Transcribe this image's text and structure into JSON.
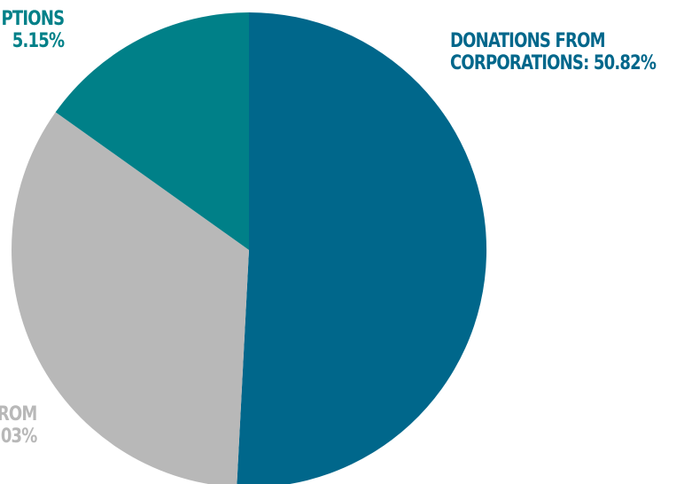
{
  "chart_data": {
    "type": "pie",
    "title": "",
    "start_angle_deg": 0,
    "direction": "clockwise",
    "slices": [
      {
        "line1": "DONATIONS FROM",
        "line2": "CORPORATIONS: 50.82%",
        "percent": 50.82,
        "color": "#00678b"
      },
      {
        "line1": "ROM",
        "line2": "03%",
        "percent": 34.03,
        "color": "#b8b8b8"
      },
      {
        "line1": "PTIONS",
        "line2": "5.15%",
        "percent": 15.15,
        "color": "#008088"
      }
    ]
  }
}
